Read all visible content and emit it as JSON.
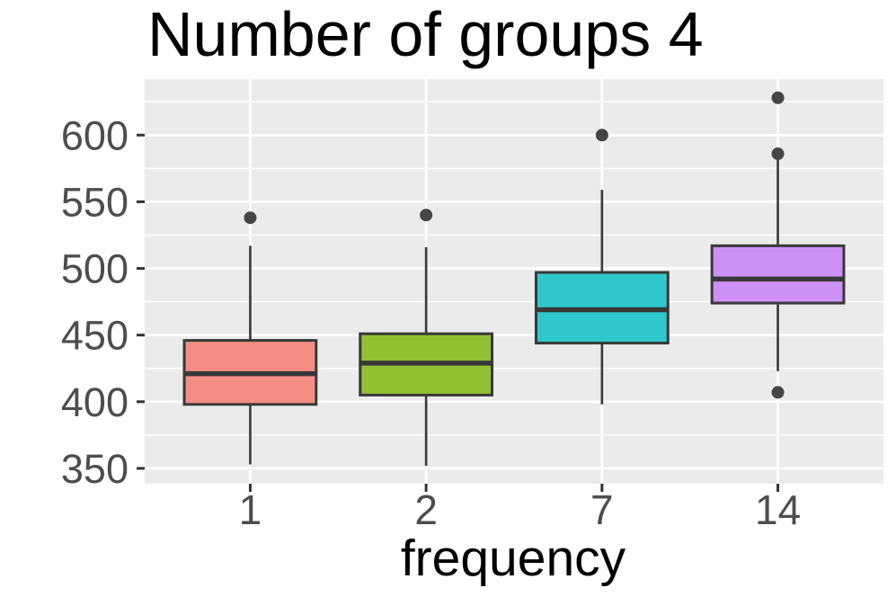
{
  "chart_data": {
    "type": "boxplot",
    "title": "Number of groups 4",
    "xlabel": "frequency",
    "ylabel": "",
    "categories": [
      "1",
      "2",
      "7",
      "14"
    ],
    "ylim": [
      338.5,
      642
    ],
    "y_major_ticks": [
      350,
      400,
      450,
      500,
      550,
      600
    ],
    "y_major_tick_labels": [
      "350",
      "400",
      "450",
      "500",
      "550",
      "600"
    ],
    "y_minor_gridlines": [
      375,
      425,
      475,
      525,
      575,
      625
    ],
    "grid": true,
    "legend": "none",
    "series": [
      {
        "name": "1",
        "color": "#F58D85",
        "whisker_low": 353,
        "q1": 398,
        "median": 421,
        "q3": 446,
        "whisker_high": 517,
        "outliers": [
          538
        ]
      },
      {
        "name": "2",
        "color": "#90C132",
        "whisker_low": 352,
        "q1": 405,
        "median": 429,
        "q3": 451,
        "whisker_high": 516,
        "outliers": [
          540
        ]
      },
      {
        "name": "7",
        "color": "#2EC8CC",
        "whisker_low": 398,
        "q1": 444,
        "median": 469,
        "q3": 497,
        "whisker_high": 559,
        "outliers": [
          600
        ]
      },
      {
        "name": "14",
        "color": "#CD90F7",
        "whisker_low": 423,
        "q1": 474,
        "median": 492,
        "q3": 517,
        "whisker_high": 586,
        "outliers": [
          407,
          586,
          628
        ]
      }
    ],
    "style": {
      "panel_background": "#EBEBEB",
      "gridline_color": "#FFFFFF",
      "box_border_color": "#383838",
      "median_color": "#383838",
      "whisker_color": "#383838",
      "outlier_color": "#454545",
      "tick_mark_color": "#333333",
      "tick_label_color": "#4D4D4D",
      "title_color": "#000000"
    }
  }
}
